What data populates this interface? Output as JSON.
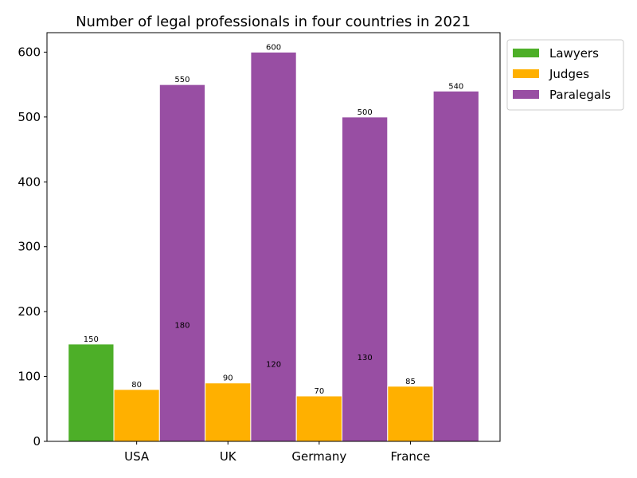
{
  "chart_data": {
    "type": "bar",
    "title": "Number of legal professionals in four countries in 2021",
    "xlabel": "",
    "ylabel": "",
    "categories": [
      "USA",
      "UK",
      "Germany",
      "France"
    ],
    "ylim": [
      0,
      630
    ],
    "yticks": [
      0,
      100,
      200,
      300,
      400,
      500,
      600
    ],
    "grid": false,
    "legend_position": "outside top-right",
    "series": [
      {
        "name": "Lawyers",
        "values": [
          150,
          180,
          120,
          130
        ],
        "color": "#4daf28"
      },
      {
        "name": "Judges",
        "values": [
          80,
          90,
          70,
          85
        ],
        "color": "#ffb000"
      },
      {
        "name": "Paralegals",
        "values": [
          550,
          600,
          500,
          540
        ],
        "color": "#984ea3"
      }
    ]
  }
}
